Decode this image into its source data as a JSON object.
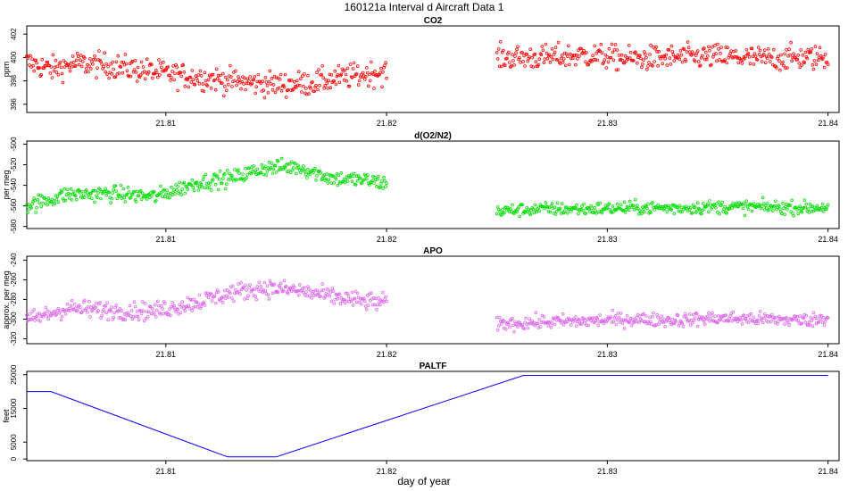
{
  "figure": {
    "title": "160121a   Interval d Aircraft Data 1",
    "xlabel": "day of year"
  },
  "chart_data": [
    {
      "type": "scatter",
      "title": "CO2",
      "ylabel": "ppm",
      "color": "#ff0000",
      "xlim": [
        21.8037,
        21.8405
      ],
      "ylim": [
        395.3,
        402.7
      ],
      "xticks": [
        21.81,
        21.82,
        21.83,
        21.84
      ],
      "xtick_labels": [
        "21.81",
        "21.82",
        "21.83",
        "21.84"
      ],
      "yticks": [
        396,
        398,
        400,
        402
      ],
      "ytick_labels": [
        "396",
        "398",
        "400",
        "402"
      ],
      "segments": [
        {
          "x": [
            21.8037,
            21.8048,
            21.806,
            21.8075,
            21.809,
            21.8105,
            21.812,
            21.8135,
            21.815,
            21.8165,
            21.818,
            21.8195,
            21.82
          ],
          "y": [
            399.6,
            399.0,
            399.5,
            399.3,
            398.9,
            398.5,
            398.2,
            397.9,
            397.7,
            397.8,
            398.3,
            398.7,
            398.8
          ],
          "spread": 0.75
        },
        {
          "x": [
            21.825,
            21.827,
            21.829,
            21.831,
            21.833,
            21.835,
            21.837,
            21.839,
            21.84
          ],
          "y": [
            400.0,
            400.0,
            400.2,
            399.9,
            400.0,
            400.1,
            399.9,
            400.0,
            400.0
          ],
          "spread": 0.75
        }
      ]
    },
    {
      "type": "scatter",
      "title": "d(O2/N2)",
      "ylabel": "per meg",
      "color": "#00dd00",
      "xlim": [
        21.8037,
        21.8405
      ],
      "ylim": [
        -582,
        -497
      ],
      "xticks": [
        21.81,
        21.82,
        21.83,
        21.84
      ],
      "xtick_labels": [
        "21.81",
        "21.82",
        "21.83",
        "21.84"
      ],
      "yticks": [
        -580,
        -560,
        -540,
        -520,
        -500
      ],
      "ytick_labels": [
        "-580",
        "-560",
        "-540",
        "-520",
        "-500"
      ],
      "segments": [
        {
          "x": [
            21.8037,
            21.8055,
            21.8075,
            21.8095,
            21.8115,
            21.813,
            21.8145,
            21.816,
            21.8175,
            21.819,
            21.82
          ],
          "y": [
            -560,
            -549,
            -548,
            -551,
            -537,
            -533,
            -523,
            -522,
            -533,
            -535,
            -538
          ],
          "spread": 5.5
        },
        {
          "x": [
            21.825,
            21.827,
            21.829,
            21.831,
            21.833,
            21.835,
            21.837,
            21.839,
            21.84
          ],
          "y": [
            -565,
            -563,
            -563,
            -562,
            -562,
            -561,
            -561,
            -562,
            -561
          ],
          "spread": 4.5
        }
      ]
    },
    {
      "type": "scatter",
      "title": "APO",
      "ylabel": "approx. per meg",
      "color": "#dd66ee",
      "xlim": [
        21.8037,
        21.8405
      ],
      "ylim": [
        -325,
        -236
      ],
      "xticks": [
        21.81,
        21.82,
        21.83,
        21.84
      ],
      "xtick_labels": [
        "21.81",
        "21.82",
        "21.83",
        "21.84"
      ],
      "yticks": [
        -320,
        -300,
        -280,
        -260,
        -240
      ],
      "ytick_labels": [
        "-320",
        "-300",
        "-280",
        "-260",
        "-240"
      ],
      "segments": [
        {
          "x": [
            21.8037,
            21.8055,
            21.8075,
            21.8095,
            21.8115,
            21.813,
            21.8145,
            21.816,
            21.8175,
            21.819,
            21.82
          ],
          "y": [
            -302,
            -289,
            -291,
            -292,
            -282,
            -273,
            -268,
            -271,
            -277,
            -282,
            -283
          ],
          "spread": 6.5
        },
        {
          "x": [
            21.825,
            21.827,
            21.829,
            21.831,
            21.833,
            21.835,
            21.837,
            21.839,
            21.84
          ],
          "y": [
            -305,
            -303,
            -302,
            -300,
            -301,
            -299,
            -300,
            -301,
            -299
          ],
          "spread": 5.0
        }
      ]
    },
    {
      "type": "line",
      "title": "PALTF",
      "ylabel": "feet",
      "color": "#0000ff",
      "xlim": [
        21.8037,
        21.8405
      ],
      "ylim": [
        -500,
        26000
      ],
      "xticks": [
        21.81,
        21.82,
        21.83,
        21.84
      ],
      "xtick_labels": [
        "21.81",
        "21.82",
        "21.83",
        "21.84"
      ],
      "yticks": [
        0,
        5000,
        15000,
        25000
      ],
      "ytick_labels": [
        "0",
        "5000",
        "15000",
        "25000"
      ],
      "x": [
        21.8037,
        21.8048,
        21.8128,
        21.815,
        21.8262,
        21.84
      ],
      "y": [
        20000,
        20000,
        600,
        600,
        24800,
        24800
      ]
    }
  ]
}
